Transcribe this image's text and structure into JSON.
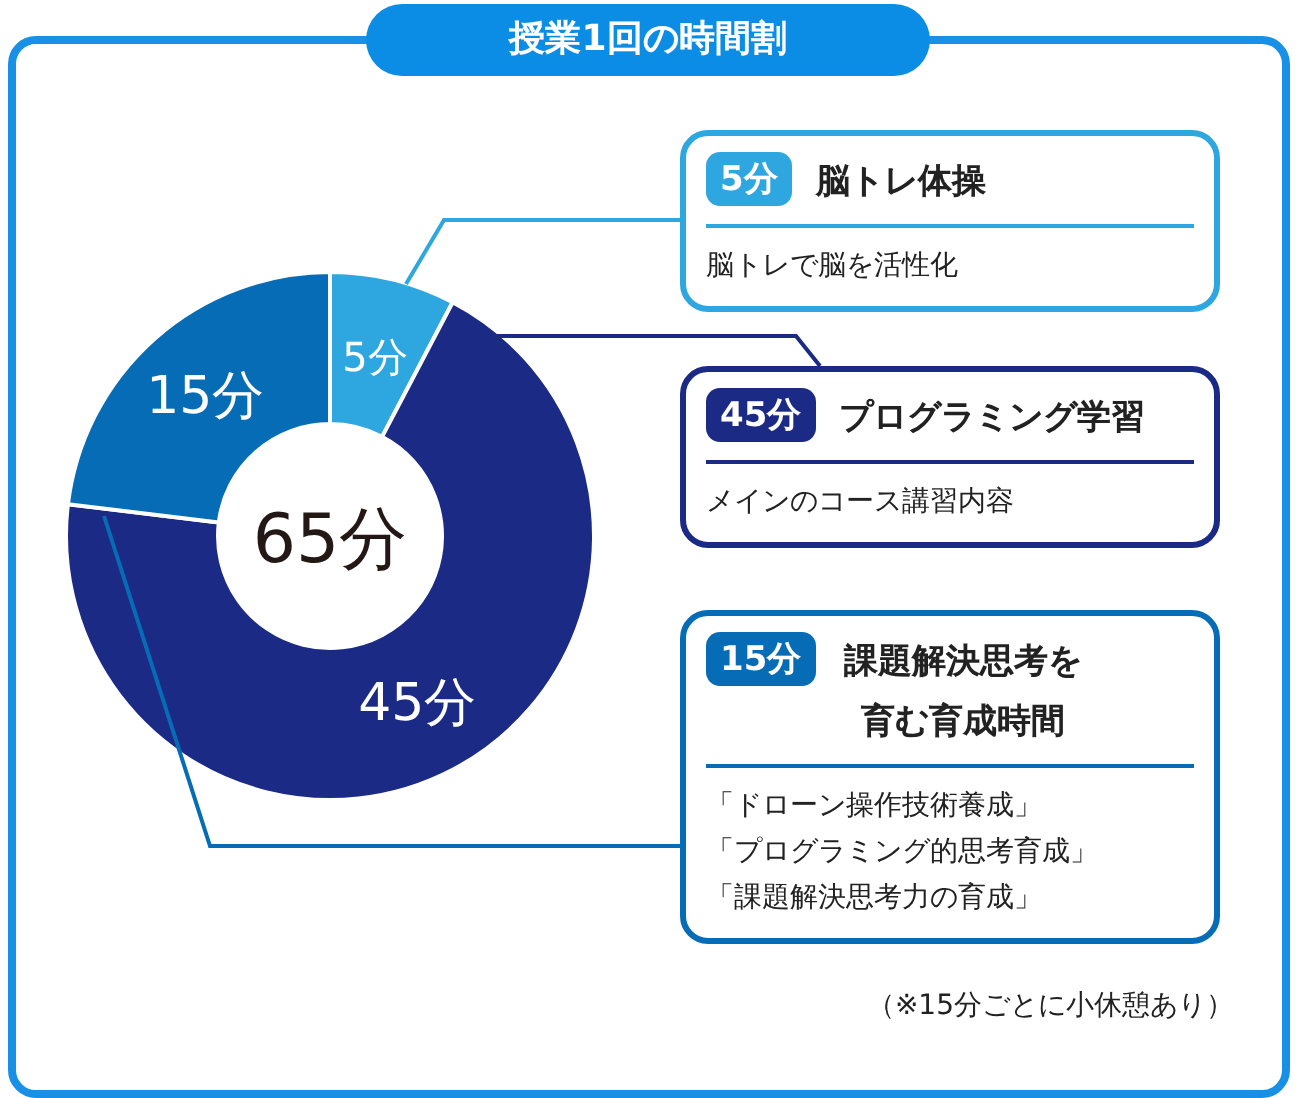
{
  "chart_data": {
    "type": "donut",
    "title": "授業1回の時間割",
    "categories": [
      "脳トレ体操",
      "プログラミング学習",
      "課題解決思考を育む育成時間"
    ],
    "values": [
      5,
      45,
      15
    ],
    "colors": [
      "#2ea6df",
      "#1b2a85",
      "#066cb5"
    ],
    "value_labels": [
      "5分",
      "45分",
      "15分"
    ],
    "legend": "right",
    "annotations": [
      "65分",
      "脳トレで脳を活性化",
      "メインのコース講習内容",
      "「ドローン操作技術養成」",
      "「プログラミング的思考育成」",
      "「課題解決思考力の育成」",
      "（※15分ごとに小休憩あり）"
    ]
  }
}
